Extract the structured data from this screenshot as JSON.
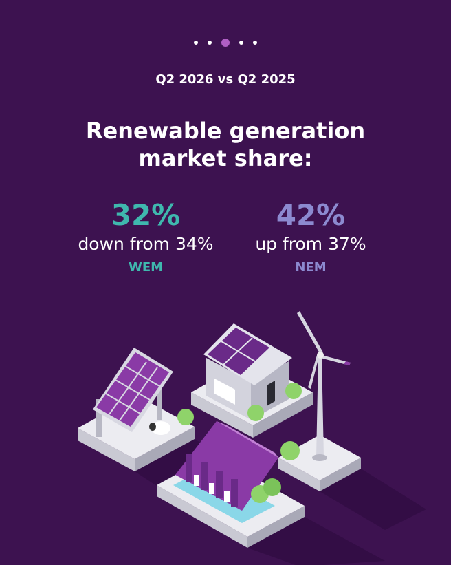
{
  "header": {
    "subtitle": "Q2 2026 vs Q2 2025",
    "title_lines": [
      "Renewable generation",
      "market share:"
    ]
  },
  "stats": [
    {
      "value": "32%",
      "change": "down from 34%",
      "market": "WEM"
    },
    {
      "value": "42%",
      "change": "up from 37%",
      "market": "NEM"
    }
  ]
}
